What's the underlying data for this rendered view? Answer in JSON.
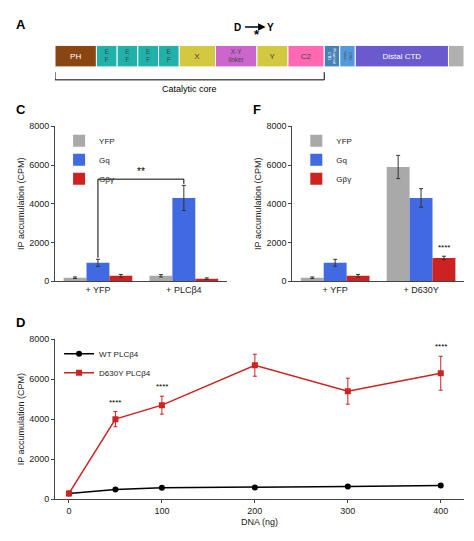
{
  "chart_data": [
    {
      "type": "bar",
      "title": "A",
      "orientation": "horizontal",
      "stacked": true,
      "categories": [
        null
      ],
      "series": [
        {
          "name": "PH",
          "color": "#8B4513",
          "values": [
            8
          ]
        },
        {
          "name": "E\nF",
          "color": "#20B2AA",
          "values": [
            4
          ]
        },
        {
          "name": "E\nF",
          "color": "#20B2AA",
          "values": [
            4
          ]
        },
        {
          "name": "E\nF",
          "color": "#20B2AA",
          "values": [
            4
          ]
        },
        {
          "name": "E\nF",
          "color": "#20B2AA",
          "values": [
            4
          ]
        },
        {
          "name": "X",
          "color": "#D4C840",
          "values": [
            7
          ]
        },
        {
          "name": "X-Y\nlinker",
          "color": "#CC66CC",
          "values": [
            8
          ]
        },
        {
          "name": "Y",
          "color": "#D4C840",
          "values": [
            6
          ]
        },
        {
          "name": "C2",
          "color": "#FF69B4",
          "values": [
            7
          ]
        },
        {
          "name": "Proximal\nCTD",
          "color": "#4682B4",
          "values": [
            3
          ]
        },
        {
          "name": "CTD\nlinker",
          "color": "#5599DD",
          "values": [
            3
          ]
        },
        {
          "name": "Distal CTD",
          "color": "#6A5ACD",
          "values": [
            18
          ]
        },
        {
          "name": null,
          "color": "#B0B0B0",
          "values": [
            3
          ]
        }
      ],
      "xlim": [
        0,
        79
      ],
      "tick_labels": false,
      "annotations": [
        "D",
        "Y",
        "*",
        "Catalytic core"
      ]
    },
    {
      "type": "bar",
      "title": "C",
      "categories": [
        "+ YFP",
        "+ PLCβ4"
      ],
      "series": [
        {
          "name": "YFP",
          "color": "#A9A9A9",
          "values": [
            180,
            280
          ],
          "errors": [
            40,
            60
          ]
        },
        {
          "name": "Gq",
          "color": "#4169E1",
          "values": [
            950,
            4300
          ],
          "errors": [
            180,
            650
          ]
        },
        {
          "name": "Gβγ",
          "color": "#CC2222",
          "values": [
            280,
            130
          ],
          "errors": [
            70,
            40
          ]
        }
      ],
      "ylabel": "IP accumulation (CPM)",
      "ylim": [
        0,
        8000
      ],
      "yticks": [
        0,
        2000,
        4000,
        6000,
        8000
      ],
      "grid": false,
      "legend": "upper left",
      "annotations": [
        {
          "text": "**",
          "series": "Gq"
        }
      ]
    },
    {
      "type": "line",
      "title": "D",
      "x": [
        0,
        50,
        100,
        200,
        300,
        400
      ],
      "series": [
        {
          "name": "WT PLCβ4",
          "color": "#000000",
          "marker": "circle",
          "values": [
            280,
            480,
            560,
            580,
            630,
            680
          ],
          "errors": [
            40,
            60,
            60,
            60,
            60,
            80
          ]
        },
        {
          "name": "D630Y PLCβ4",
          "color": "#CC2222",
          "marker": "square",
          "values": [
            280,
            4000,
            4700,
            6700,
            5400,
            6300
          ],
          "errors": [
            60,
            380,
            450,
            550,
            650,
            850
          ]
        }
      ],
      "xlabel": "DNA (ng)",
      "ylabel": "IP accumulation (CPM)",
      "xlim": [
        -15,
        425
      ],
      "xticks": [
        0,
        100,
        200,
        300,
        400
      ],
      "ylim": [
        0,
        8000
      ],
      "yticks": [
        0,
        2000,
        4000,
        6000,
        8000
      ],
      "grid": false,
      "legend": "upper left",
      "annotations": [
        {
          "text": "****",
          "series": "D630Y PLCβ4",
          "x": 50
        },
        {
          "text": "****",
          "series": "D630Y PLCβ4",
          "x": 100
        },
        {
          "text": "****",
          "series": "D630Y PLCβ4",
          "x": 400
        }
      ]
    },
    {
      "type": "bar",
      "title": "F",
      "categories": [
        "+ YFP",
        "+ D630Y"
      ],
      "series": [
        {
          "name": "YFP",
          "color": "#A9A9A9",
          "values": [
            180,
            5900
          ],
          "errors": [
            40,
            600
          ]
        },
        {
          "name": "Gq",
          "color": "#4169E1",
          "values": [
            950,
            4300
          ],
          "errors": [
            180,
            480
          ]
        },
        {
          "name": "Gβγ",
          "color": "#CC2222",
          "values": [
            280,
            1200
          ],
          "errors": [
            70,
            90
          ]
        }
      ],
      "ylabel": "IP accumulation (CPM)",
      "ylim": [
        0,
        8000
      ],
      "yticks": [
        0,
        2000,
        4000,
        6000,
        8000
      ],
      "grid": false,
      "legend": "upper left",
      "annotations": [
        {
          "text": "****",
          "series": "Gβγ",
          "category": "+ D630Y"
        }
      ]
    }
  ]
}
